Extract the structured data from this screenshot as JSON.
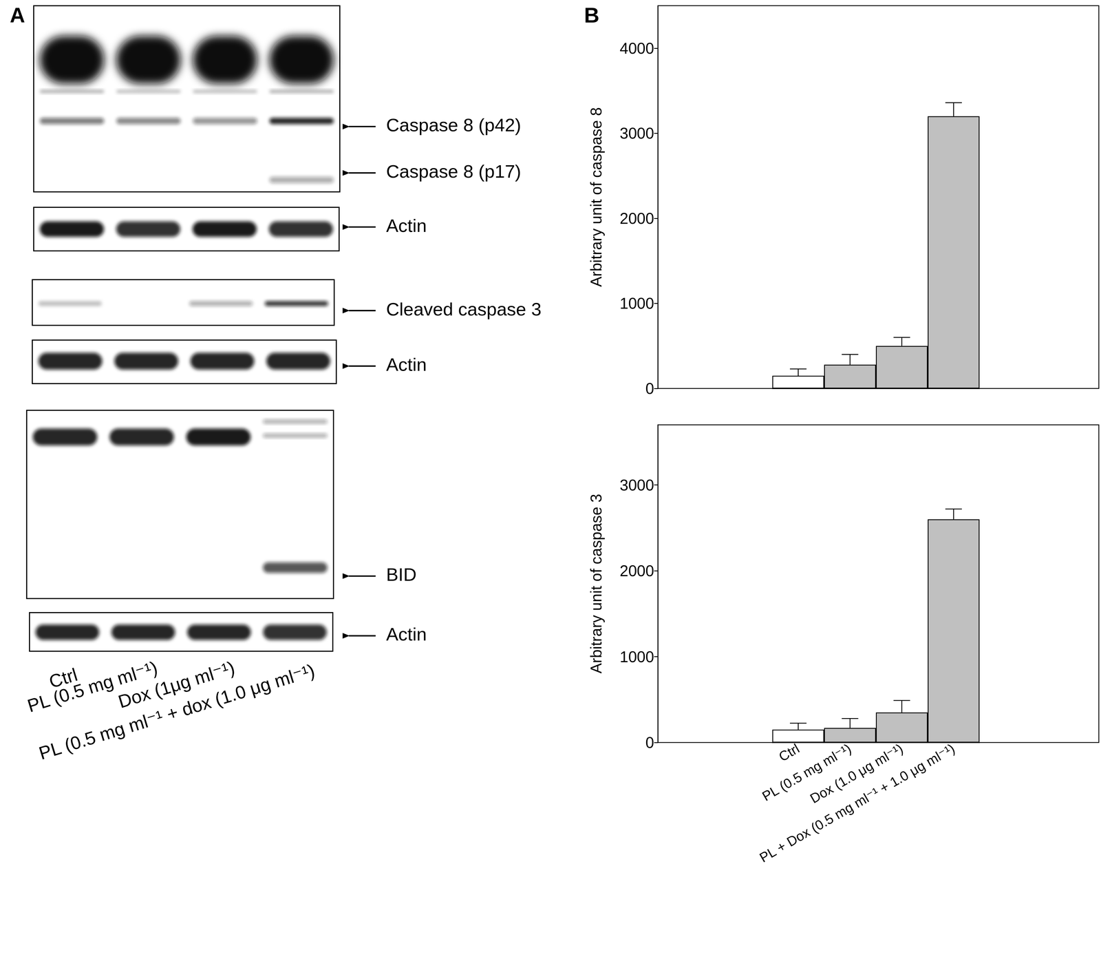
{
  "panel_a": {
    "label": "A",
    "lanes": [
      "Ctrl",
      "PL (0.5 mg ml⁻¹)",
      "Dox (1μg ml⁻¹)",
      "PL (0.5 mg ml⁻¹ + dox (1.0 μg ml⁻¹)"
    ],
    "blots": [
      {
        "labels": [
          "Caspase 8 (p42)",
          "Caspase 8 (p17)"
        ]
      },
      {
        "labels": [
          "Actin"
        ]
      },
      {
        "labels": [
          "Cleaved caspase 3"
        ]
      },
      {
        "labels": [
          "Actin"
        ]
      },
      {
        "labels": [
          "BID"
        ]
      },
      {
        "labels": [
          "Actin"
        ]
      }
    ]
  },
  "panel_b": {
    "label": "B"
  },
  "chart_data": [
    {
      "type": "bar",
      "categories": [
        "Ctrl",
        "PL (0.5 mg ml⁻¹)",
        "Dox (1.0 μg ml⁻¹)",
        "PL + Dox (0.5 mg ml⁻¹ + 1.0 μg ml⁻¹)"
      ],
      "values": [
        150,
        280,
        500,
        3200
      ],
      "errors": [
        80,
        120,
        100,
        160
      ],
      "colors": [
        "#ffffff",
        "#c0c0c0",
        "#c0c0c0",
        "#c0c0c0"
      ],
      "y_label": "Arbitrary unit of caspase 8",
      "ylim": [
        0,
        4500
      ],
      "yticks": [
        0,
        1000,
        2000,
        3000,
        4000
      ],
      "tick_labels": "y"
    },
    {
      "type": "bar",
      "categories": [
        "Ctrl",
        "PL (0.5 mg ml⁻¹)",
        "Dox (1.0 μg ml⁻¹)",
        "PL + Dox (0.5 mg ml⁻¹ + 1.0 μg ml⁻¹)"
      ],
      "values": [
        150,
        170,
        350,
        2600
      ],
      "errors": [
        75,
        110,
        140,
        120
      ],
      "colors": [
        "#ffffff",
        "#c0c0c0",
        "#c0c0c0",
        "#c0c0c0"
      ],
      "y_label": "Arbitrary unit of caspase 3",
      "ylim": [
        0,
        3700
      ],
      "yticks": [
        0,
        1000,
        2000,
        3000
      ],
      "tick_labels": true
    }
  ]
}
